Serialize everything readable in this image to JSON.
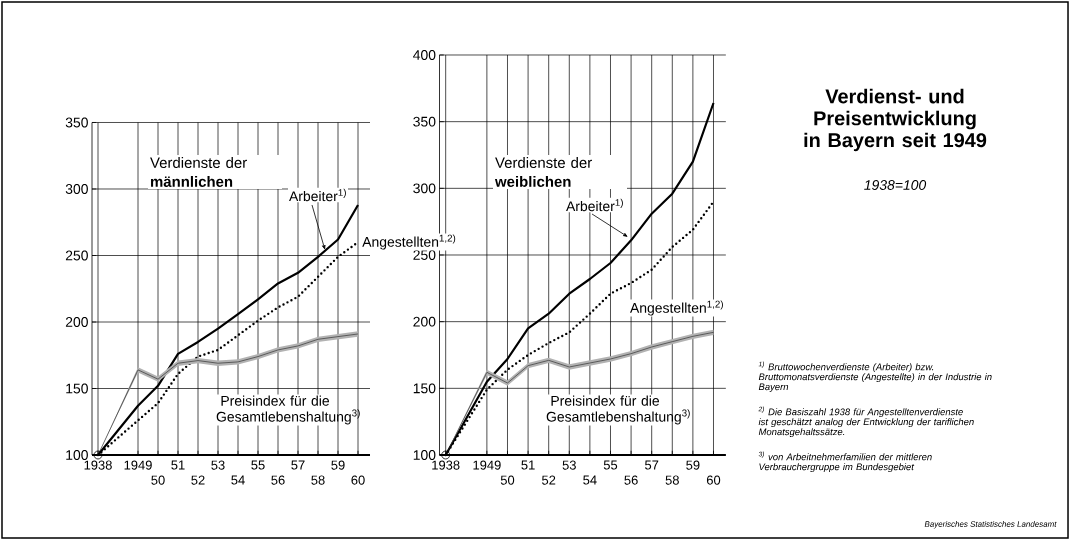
{
  "chart_data": [
    {
      "type": "line",
      "title": "Verdienste der **männlichen**",
      "categories": [
        "1938",
        "1949",
        "50",
        "51",
        "52",
        "53",
        "54",
        "55",
        "56",
        "57",
        "58",
        "59",
        "60"
      ],
      "series": [
        {
          "name": "Arbeiter$^{1)}$",
          "color": "#000000",
          "line_style": "solid",
          "values": [
            100,
            137,
            152,
            176,
            185,
            195,
            206,
            217,
            229,
            237,
            249,
            262,
            288
          ]
        },
        {
          "name": "Angestellten$^{1,2)}$",
          "color": "#000000",
          "line_style": "dotted",
          "values": [
            100,
            126,
            139,
            161,
            174,
            179,
            190,
            201,
            211,
            219,
            234,
            249,
            260
          ]
        },
        {
          "name": "Preisindex für die Gesamtlebenshaltung$^{3)}$",
          "color": "#000000",
          "line_style": "solid",
          "values": [
            100,
            164,
            157,
            169,
            171,
            169,
            170,
            174,
            179,
            182,
            187,
            189,
            191
          ],
          "lower": [
            100,
            162,
            155,
            167,
            169,
            167,
            168,
            172,
            177,
            180,
            185,
            187,
            189
          ],
          "upper": [
            100,
            166,
            159,
            171,
            173,
            171,
            172,
            176,
            181,
            184,
            189,
            191,
            193
          ]
        }
      ],
      "ylim": [
        100,
        350
      ],
      "yticks": [
        100,
        150,
        200,
        250,
        300,
        350
      ],
      "grid": true
    },
    {
      "type": "line",
      "title": "Verdienste der **weiblichen**",
      "categories": [
        "1938",
        "1949",
        "50",
        "51",
        "52",
        "53",
        "54",
        "55",
        "56",
        "57",
        "58",
        "59",
        "60"
      ],
      "series": [
        {
          "name": "Arbeiter$^{1)}$",
          "color": "#000000",
          "line_style": "solid",
          "values": [
            100,
            155,
            172,
            195,
            206,
            221,
            232,
            244,
            261,
            281,
            296,
            320,
            364
          ]
        },
        {
          "name": "Angestellten$^{1,2)}$",
          "color": "#000000",
          "line_style": "dotted",
          "values": [
            100,
            149,
            164,
            175,
            184,
            192,
            206,
            221,
            229,
            239,
            256,
            269,
            290
          ]
        },
        {
          "name": "Preisindex für die Gesamtlebenshaltung$^{3)}$",
          "color": "#000000",
          "line_style": "solid",
          "values": [
            100,
            162,
            154,
            167,
            171,
            166,
            169,
            172,
            176,
            181,
            185,
            189,
            192
          ],
          "lower": [
            100,
            160,
            152,
            165,
            169,
            164,
            167,
            170,
            174,
            179,
            183,
            187,
            190
          ],
          "upper": [
            100,
            164,
            156,
            169,
            173,
            168,
            171,
            174,
            178,
            183,
            187,
            191,
            194
          ]
        }
      ],
      "ylim": [
        100,
        400
      ],
      "yticks": [
        100,
        150,
        200,
        250,
        300,
        350,
        400
      ],
      "grid": true
    },
    {
      "type": "other",
      "title": "Verdienst- und Preisentwicklung in Bayern seit 1949",
      "subtitle": "1938=100",
      "annotations": [
        "$^{1)}$ Bruttowochenverdienste (Arbeiter) bzw. Bruttomonatsverdienste (Angestellte) in der Industrie in Bayern",
        "$^{2)}$ Die Basiszahl 1938 für Angestelltenverdienste ist geschätzt analog der Entwicklung der tariflichen Monatsgehaltssätze.",
        "$^{3)}$ von Arbeitnehmerfamilien der mittleren Verbrauchergruppe im Bundesgebiet",
        "Bayerisches Statistisches Landesamt"
      ]
    }
  ]
}
